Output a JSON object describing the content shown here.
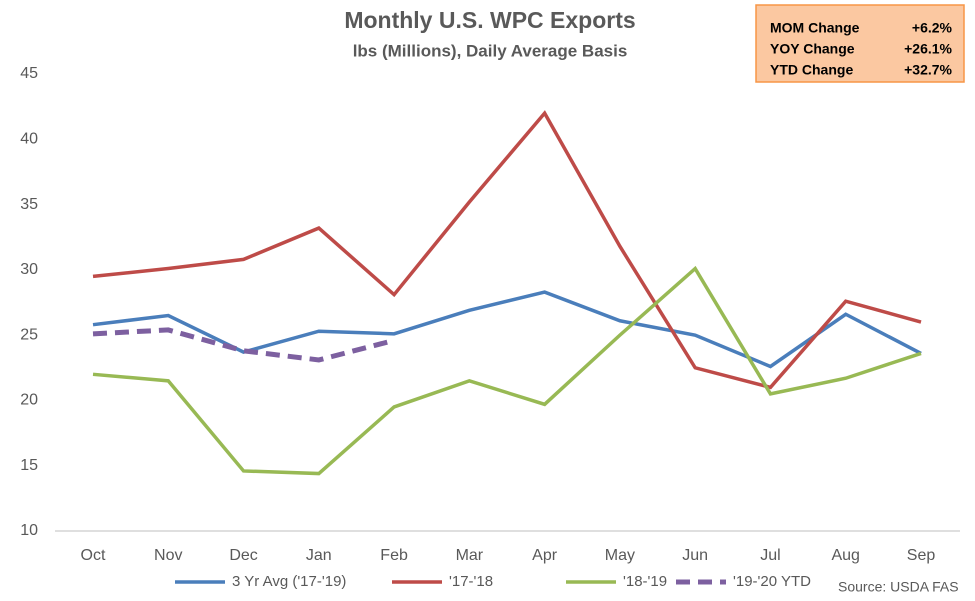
{
  "chart_data": {
    "type": "line",
    "title": "Monthly U.S. WPC Exports",
    "subtitle": "lbs (Millions), Daily Average Basis",
    "categories": [
      "Oct",
      "Nov",
      "Dec",
      "Jan",
      "Feb",
      "Mar",
      "Apr",
      "May",
      "Jun",
      "Jul",
      "Aug",
      "Sep"
    ],
    "series": [
      {
        "name": "3 Yr Avg ('17-'19)",
        "color": "#4a7ebb",
        "values": [
          25.8,
          26.5,
          23.7,
          25.3,
          25.1,
          26.9,
          28.3,
          26.1,
          25.0,
          22.6,
          26.6,
          23.6
        ]
      },
      {
        "name": "'17-'18",
        "color": "#be4b48",
        "values": [
          29.5,
          30.1,
          30.8,
          33.2,
          28.1,
          35.2,
          42.0,
          31.8,
          22.5,
          21.0,
          27.6,
          26.0
        ]
      },
      {
        "name": "'18-'19",
        "color": "#98b954",
        "values": [
          22.0,
          21.5,
          14.6,
          14.4,
          19.5,
          21.5,
          19.7,
          25.0,
          30.1,
          20.5,
          21.7,
          23.6
        ]
      },
      {
        "name": "'19-'20 YTD",
        "color": "#7d60a0",
        "dashed": true,
        "values": [
          25.1,
          25.4,
          23.8,
          23.1,
          24.6,
          null,
          null,
          null,
          null,
          null,
          null,
          null
        ]
      }
    ],
    "ylim": [
      10,
      45
    ],
    "yticks": [
      10,
      15,
      20,
      25,
      30,
      35,
      40,
      45
    ],
    "grid": false,
    "source": "Source: USDA FAS",
    "info_box": [
      {
        "label": "MOM Change",
        "value": "+6.2%"
      },
      {
        "label": "YOY Change",
        "value": "+26.1%"
      },
      {
        "label": "YTD Change",
        "value": "+32.7%"
      }
    ]
  }
}
